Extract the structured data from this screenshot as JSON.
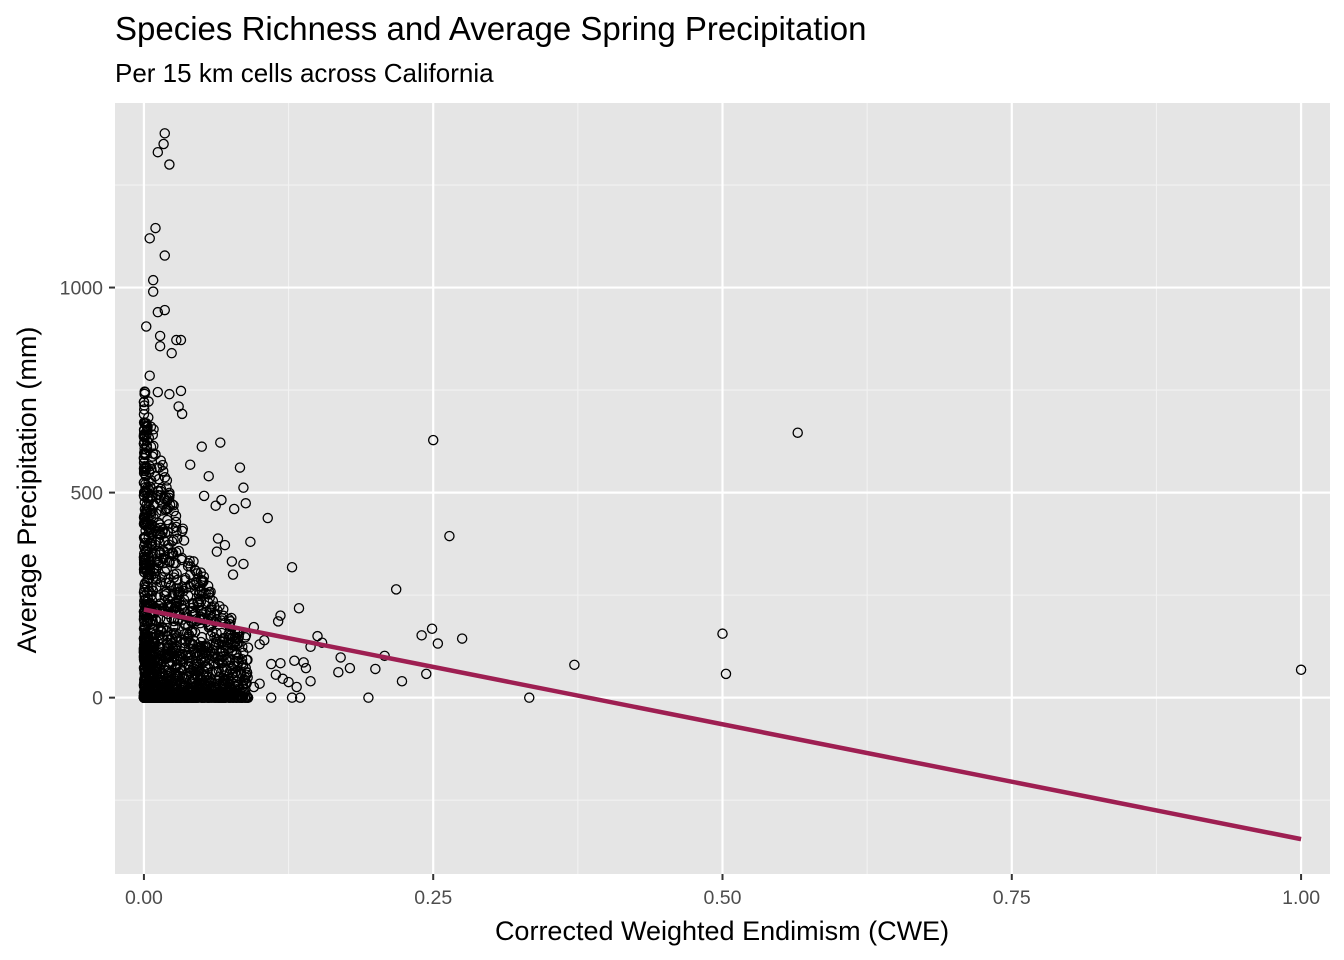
{
  "chart_data": {
    "type": "scatter",
    "title": "Species Richness and Average Spring Precipitation",
    "subtitle": "Per 15 km cells across California",
    "xlabel": "Corrected Weighted Endimism (CWE)",
    "ylabel": "Average Precipitation (mm)",
    "xlim": [
      -0.025,
      1.025
    ],
    "ylim": [
      -430,
      1450
    ],
    "x_ticks": [
      {
        "value": 0.0,
        "label": "0.00"
      },
      {
        "value": 0.25,
        "label": "0.25"
      },
      {
        "value": 0.5,
        "label": "0.50"
      },
      {
        "value": 0.75,
        "label": "0.75"
      },
      {
        "value": 1.0,
        "label": "1.00"
      }
    ],
    "y_ticks": [
      {
        "value": 0,
        "label": "0"
      },
      {
        "value": 500,
        "label": "500"
      },
      {
        "value": 1000,
        "label": "1000"
      }
    ],
    "grid": true,
    "points_visible": [
      [
        0.018,
        1376
      ],
      [
        0.017,
        1350
      ],
      [
        0.012,
        1330
      ],
      [
        0.022,
        1300
      ],
      [
        0.01,
        1145
      ],
      [
        0.005,
        1120
      ],
      [
        0.018,
        1078
      ],
      [
        0.008,
        1018
      ],
      [
        0.008,
        990
      ],
      [
        0.018,
        945
      ],
      [
        0.012,
        940
      ],
      [
        0.002,
        905
      ],
      [
        0.014,
        882
      ],
      [
        0.028,
        872
      ],
      [
        0.032,
        872
      ],
      [
        0.014,
        857
      ],
      [
        0.024,
        840
      ],
      [
        0.005,
        785
      ],
      [
        0.032,
        748
      ],
      [
        0.012,
        745
      ],
      [
        0.022,
        740
      ],
      [
        0.004,
        722
      ],
      [
        0.03,
        710
      ],
      [
        0.033,
        692
      ],
      [
        0.05,
        612
      ],
      [
        0.066,
        622
      ],
      [
        0.04,
        568
      ],
      [
        0.083,
        561
      ],
      [
        0.056,
        540
      ],
      [
        0.086,
        512
      ],
      [
        0.052,
        492
      ],
      [
        0.067,
        482
      ],
      [
        0.088,
        474
      ],
      [
        0.078,
        460
      ],
      [
        0.062,
        468
      ],
      [
        0.107,
        438
      ],
      [
        0.064,
        388
      ],
      [
        0.092,
        380
      ],
      [
        0.07,
        372
      ],
      [
        0.063,
        356
      ],
      [
        0.076,
        332
      ],
      [
        0.086,
        326
      ],
      [
        0.077,
        300
      ],
      [
        0.128,
        318
      ],
      [
        0.134,
        218
      ],
      [
        0.118,
        200
      ],
      [
        0.116,
        186
      ],
      [
        0.095,
        172
      ],
      [
        0.104,
        140
      ],
      [
        0.1,
        130
      ],
      [
        0.085,
        124
      ],
      [
        0.09,
        122
      ],
      [
        0.15,
        150
      ],
      [
        0.154,
        134
      ],
      [
        0.144,
        124
      ],
      [
        0.11,
        82
      ],
      [
        0.118,
        84
      ],
      [
        0.13,
        90
      ],
      [
        0.138,
        86
      ],
      [
        0.14,
        72
      ],
      [
        0.17,
        98
      ],
      [
        0.178,
        72
      ],
      [
        0.168,
        62
      ],
      [
        0.114,
        56
      ],
      [
        0.12,
        46
      ],
      [
        0.125,
        38
      ],
      [
        0.144,
        40
      ],
      [
        0.132,
        26
      ],
      [
        0.1,
        34
      ],
      [
        0.095,
        26
      ],
      [
        0.09,
        0
      ],
      [
        0.11,
        0
      ],
      [
        0.128,
        0
      ],
      [
        0.135,
        0
      ],
      [
        0.194,
        0
      ],
      [
        0.2,
        70
      ],
      [
        0.208,
        102
      ],
      [
        0.218,
        264
      ],
      [
        0.223,
        40
      ],
      [
        0.24,
        152
      ],
      [
        0.244,
        58
      ],
      [
        0.249,
        168
      ],
      [
        0.254,
        132
      ],
      [
        0.25,
        628
      ],
      [
        0.264,
        394
      ],
      [
        0.275,
        144
      ],
      [
        0.333,
        0
      ],
      [
        0.372,
        80
      ],
      [
        0.5,
        156
      ],
      [
        0.503,
        58
      ],
      [
        0.565,
        646
      ],
      [
        1.0,
        68
      ]
    ],
    "points_dense_cluster": {
      "x_range": [
        0.0,
        0.09
      ],
      "y_range": [
        0,
        760
      ],
      "count": 1500
    },
    "trend_line": {
      "x": [
        0.0,
        1.0
      ],
      "y": [
        215,
        -345
      ],
      "color": "#9E1F52"
    },
    "colors": {
      "panel": "#E5E5E5",
      "grid_major": "#FFFFFF",
      "point_stroke": "#000000"
    }
  }
}
